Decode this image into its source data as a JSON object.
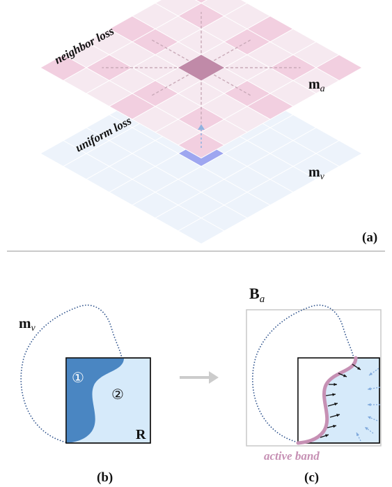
{
  "top": {
    "neighbor_loss": "neighbor loss",
    "uniform_loss": "uniform loss",
    "m_a_base": "m",
    "m_a_sub": "a",
    "m_v_base": "m",
    "m_v_sub": "v",
    "panel": "(a)"
  },
  "bottom_left": {
    "m_v_base": "m",
    "m_v_sub": "v",
    "region1": "①",
    "region2": "②",
    "R": "R",
    "panel": "(b)"
  },
  "bottom_right": {
    "B_base": "B",
    "B_sub": "a",
    "active_band": "active band",
    "panel": "(c)"
  },
  "colors": {
    "pink_light": "#f6e9f0",
    "pink_mid": "#f2cfe0",
    "pink_dark": "#c08aa8",
    "blue_light": "#edf3fb",
    "blue_center": "#9ea6f0",
    "region_dark": "#4a86c2",
    "region_light": "#d6eafa",
    "band": "#c690b4",
    "outline_dotted": "#2a4f8a"
  }
}
